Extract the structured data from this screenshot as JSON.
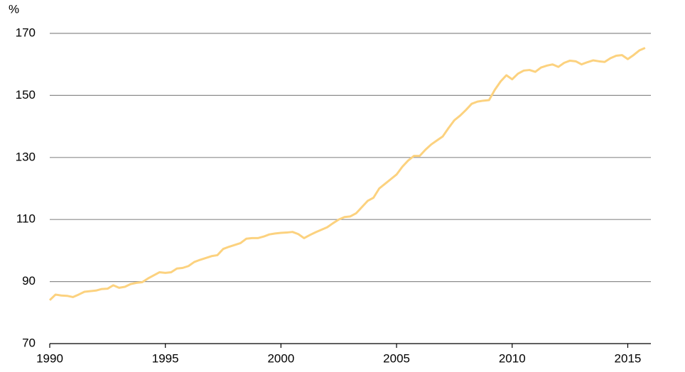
{
  "chart_data": {
    "type": "line",
    "y_label": "%",
    "x": [
      1990,
      1990.25,
      1990.5,
      1990.75,
      1991,
      1991.25,
      1991.5,
      1991.75,
      1992,
      1992.25,
      1992.5,
      1992.75,
      1993,
      1993.25,
      1993.5,
      1993.75,
      1994,
      1994.25,
      1994.5,
      1994.75,
      1995,
      1995.25,
      1995.5,
      1995.75,
      1996,
      1996.25,
      1996.5,
      1996.75,
      1997,
      1997.25,
      1997.5,
      1997.75,
      1998,
      1998.25,
      1998.5,
      1998.75,
      1999,
      1999.25,
      1999.5,
      1999.75,
      2000,
      2000.25,
      2000.5,
      2000.75,
      2001,
      2001.25,
      2001.5,
      2001.75,
      2002,
      2002.25,
      2002.5,
      2002.75,
      2003,
      2003.25,
      2003.5,
      2003.75,
      2004,
      2004.25,
      2004.5,
      2004.75,
      2005,
      2005.25,
      2005.5,
      2005.75,
      2006,
      2006.25,
      2006.5,
      2006.75,
      2007,
      2007.25,
      2007.5,
      2007.75,
      2008,
      2008.25,
      2008.5,
      2008.75,
      2009,
      2009.25,
      2009.5,
      2009.75,
      2010,
      2010.25,
      2010.5,
      2010.75,
      2011,
      2011.25,
      2011.5,
      2011.75,
      2012,
      2012.25,
      2012.5,
      2012.75,
      2013,
      2013.25,
      2013.5,
      2013.75,
      2014,
      2014.25,
      2014.5,
      2014.75,
      2015,
      2015.25,
      2015.5,
      2015.75
    ],
    "series": [
      {
        "color": "#fcd27f",
        "values": [
          84,
          85.8,
          85.5,
          85.4,
          85,
          85.8,
          86.7,
          86.9,
          87.1,
          87.6,
          87.7,
          88.8,
          88,
          88.3,
          89.2,
          89.6,
          89.8,
          91,
          92,
          93,
          92.8,
          93,
          94.2,
          94.4,
          95,
          96.3,
          97,
          97.6,
          98.2,
          98.5,
          100.5,
          101.2,
          101.8,
          102.4,
          103.8,
          104,
          104,
          104.5,
          105.2,
          105.5,
          105.7,
          105.8,
          106,
          105.3,
          104,
          105,
          105.9,
          106.7,
          107.5,
          108.8,
          110,
          110.8,
          111,
          112,
          114,
          116,
          117,
          120,
          121.5,
          123,
          124.5,
          127,
          129,
          130.5,
          130.5,
          132.5,
          134.2,
          135.5,
          136.8,
          139.5,
          142,
          143.5,
          145.3,
          147.3,
          148,
          148.3,
          148.5,
          151.8,
          154.5,
          156.5,
          155.2,
          157,
          158,
          158.2,
          157.6,
          159,
          159.6,
          160,
          159.2,
          160.5,
          161.2,
          161,
          160,
          160.7,
          161.3,
          161,
          160.8,
          162,
          162.8,
          163,
          161.7,
          163,
          164.5,
          165.3
        ]
      }
    ],
    "xlim": [
      1990,
      2016
    ],
    "xticks": [
      1990,
      1995,
      2000,
      2005,
      2010,
      2015
    ],
    "ylim": [
      70,
      170
    ],
    "yticks": [
      70,
      90,
      110,
      130,
      150,
      170
    ],
    "grid": true
  }
}
